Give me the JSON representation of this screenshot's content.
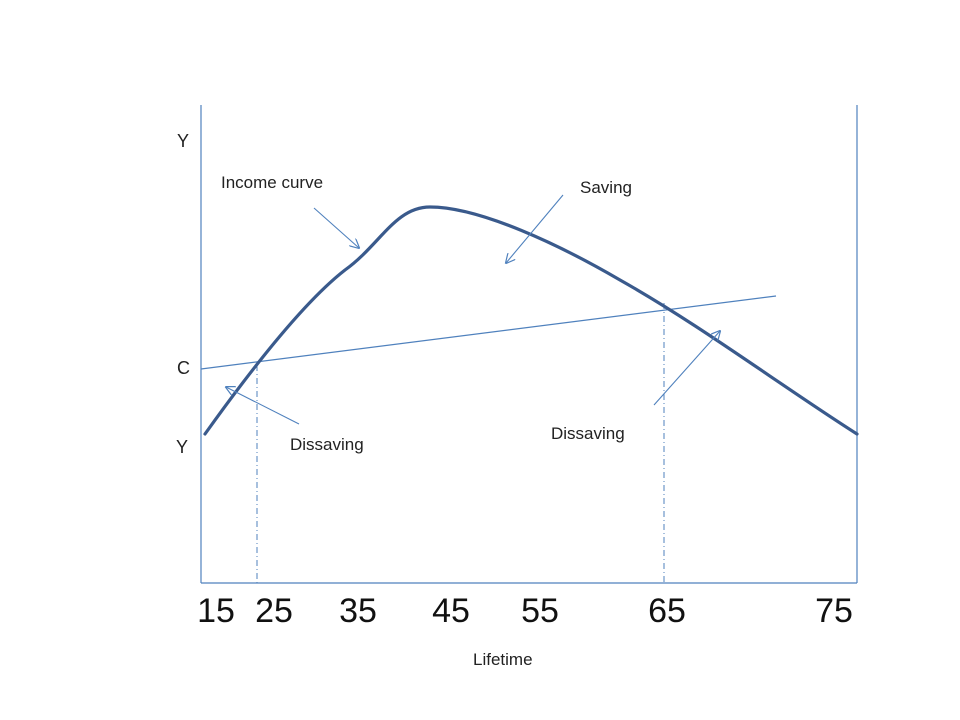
{
  "diagram": {
    "y_axis_labels": {
      "top": "Y",
      "middle": "C",
      "bottom": "Y"
    },
    "annotations": {
      "income_curve": "Income curve",
      "saving": "Saving",
      "dissaving_left": "Dissaving",
      "dissaving_right": "Dissaving"
    },
    "x_ticks": [
      "15",
      "25",
      "35",
      "45",
      "55",
      "65",
      "75"
    ],
    "x_label": "Lifetime",
    "colors": {
      "income_curve": "#3a5a8c",
      "consumption_line": "#4f81bd",
      "axes": "#4f81bd",
      "arrows": "#4f81bd",
      "text": "#222222"
    }
  }
}
